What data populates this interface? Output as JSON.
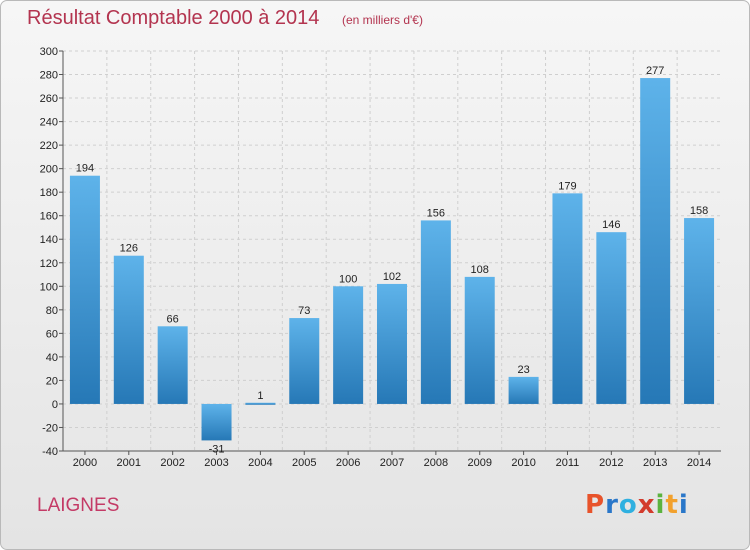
{
  "title": "Résultat Comptable 2000 à 2014",
  "subtitle": "(en milliers d'€)",
  "commune": "LAIGNES",
  "logo": {
    "letters": [
      "P",
      "r",
      "o",
      "x",
      "i",
      "t",
      "i"
    ],
    "colors": [
      "#e8532b",
      "#2a77c9",
      "#2fb0e0",
      "#d33b2c",
      "#5bb33f",
      "#f2a12d",
      "#2a77c9"
    ]
  },
  "colors": {
    "bar_top": "#5eb3ea",
    "bar_bottom": "#2678b6",
    "title": "#b3344f"
  },
  "chart_data": {
    "type": "bar",
    "title": "Résultat Comptable 2000 à 2014",
    "subtitle": "(en milliers d'€)",
    "categories": [
      "2000",
      "2001",
      "2002",
      "2003",
      "2004",
      "2005",
      "2006",
      "2007",
      "2008",
      "2009",
      "2010",
      "2011",
      "2012",
      "2013",
      "2014"
    ],
    "values": [
      194,
      126,
      66,
      -31,
      1,
      73,
      100,
      102,
      156,
      108,
      23,
      179,
      146,
      277,
      158
    ],
    "ylim": [
      -40,
      300
    ],
    "yticks": [
      -40,
      -20,
      0,
      20,
      40,
      60,
      80,
      100,
      120,
      140,
      160,
      180,
      200,
      220,
      240,
      260,
      280,
      300
    ],
    "grid": true
  }
}
